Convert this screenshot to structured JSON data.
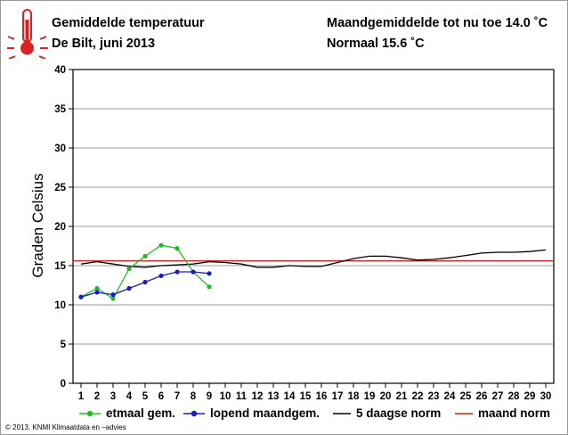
{
  "header": {
    "title": "Gemiddelde temperatuur",
    "subtitle": "De Bilt, juni 2013",
    "month_avg": "Maandgemiddelde tot nu toe 14.0 ˚C",
    "normal": "Normaal 15.6 ˚C"
  },
  "icon": "thermometer-icon",
  "copyright": "© 2013, KNMI Klimaatdata en –advies",
  "colors": {
    "etmaal": "#22bb22",
    "lopend": "#1a1acc",
    "norm5": "#000000",
    "maandnorm": "#cc2222",
    "grid": "#7a7a7a",
    "icon": "#dd2222"
  },
  "chart_data": {
    "type": "line",
    "title": "Gemiddelde temperatuur",
    "xlabel": "",
    "ylabel": "Graden Celsius",
    "xlim": [
      0.5,
      30.5
    ],
    "ylim": [
      0,
      40
    ],
    "x_ticks": [
      1,
      2,
      3,
      4,
      5,
      6,
      7,
      8,
      9,
      10,
      11,
      12,
      13,
      14,
      15,
      16,
      17,
      18,
      19,
      20,
      21,
      22,
      23,
      24,
      25,
      26,
      27,
      28,
      29,
      30
    ],
    "y_ticks": [
      0,
      5,
      10,
      15,
      20,
      25,
      30,
      35,
      40
    ],
    "grid": "horizontal",
    "legend_position": "bottom",
    "series": [
      {
        "name": "etmaal gem.",
        "key": "etmaal",
        "marker": true,
        "x": [
          1,
          2,
          3,
          4,
          5,
          6,
          7,
          8,
          9
        ],
        "values": [
          11.0,
          12.1,
          10.8,
          14.6,
          16.2,
          17.6,
          17.2,
          14.2,
          12.3
        ]
      },
      {
        "name": "lopend maandgem.",
        "key": "lopend",
        "marker": true,
        "x": [
          1,
          2,
          3,
          4,
          5,
          6,
          7,
          8,
          9
        ],
        "values": [
          11.0,
          11.6,
          11.3,
          12.1,
          12.9,
          13.7,
          14.2,
          14.2,
          14.0
        ]
      },
      {
        "name": "5 daagse norm",
        "key": "norm5",
        "marker": false,
        "x": [
          1,
          2,
          3,
          4,
          5,
          6,
          7,
          8,
          9,
          10,
          11,
          12,
          13,
          14,
          15,
          16,
          17,
          18,
          19,
          20,
          21,
          22,
          23,
          24,
          25,
          26,
          27,
          28,
          29,
          30
        ],
        "values": [
          15.2,
          15.5,
          15.2,
          14.9,
          14.8,
          15.0,
          15.1,
          15.2,
          15.5,
          15.4,
          15.2,
          14.8,
          14.8,
          15.0,
          14.9,
          14.9,
          15.4,
          15.9,
          16.2,
          16.2,
          16.0,
          15.7,
          15.8,
          16.0,
          16.3,
          16.6,
          16.7,
          16.7,
          16.8,
          17.0
        ]
      },
      {
        "name": "maand norm",
        "key": "maandnorm",
        "marker": false,
        "x": [
          0.5,
          30.5
        ],
        "values": [
          15.6,
          15.6
        ]
      }
    ]
  }
}
